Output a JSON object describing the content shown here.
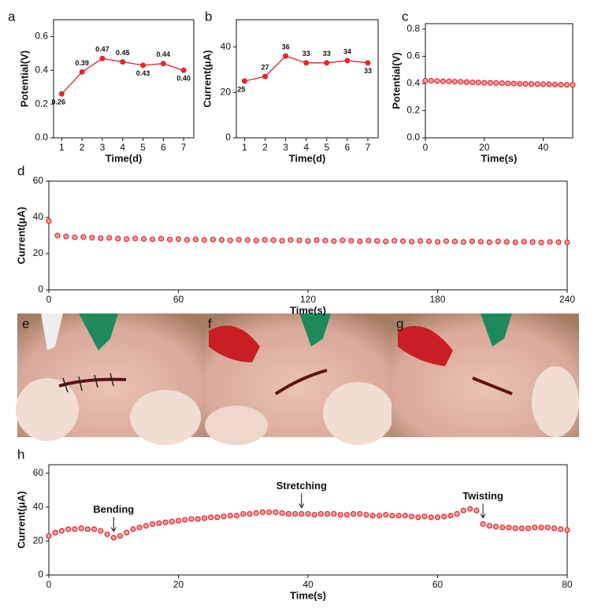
{
  "chart_data": [
    {
      "panel_label": "a",
      "type": "line",
      "x": [
        1,
        2,
        3,
        4,
        5,
        6,
        7
      ],
      "values": [
        0.26,
        0.39,
        0.47,
        0.45,
        0.43,
        0.44,
        0.4
      ],
      "value_labels": [
        "0.26",
        "0.39",
        "0.47",
        "0.45",
        "0.43",
        "0.44",
        "0.40"
      ],
      "xlim": [
        0.6,
        7.5
      ],
      "xticks": [
        1,
        2,
        3,
        4,
        5,
        6,
        7
      ],
      "ylim": [
        0,
        0.7
      ],
      "yticks": [
        {
          "value": 0,
          "label": "0.0"
        },
        {
          "value": 0.2,
          "label": "0.2"
        },
        {
          "value": 0.4,
          "label": "0.4"
        },
        {
          "value": 0.6,
          "label": "0.6"
        }
      ],
      "xlabel": "Time(d)",
      "ylabel": "Potential(V)",
      "color": "#e3262b",
      "marker": "filled"
    },
    {
      "panel_label": "b",
      "type": "line",
      "x": [
        1,
        2,
        3,
        4,
        5,
        6,
        7
      ],
      "values": [
        25,
        27,
        36,
        33,
        33,
        34,
        33
      ],
      "xlim": [
        0.6,
        7.5
      ],
      "xticks": [
        1,
        2,
        3,
        4,
        5,
        6,
        7
      ],
      "ylim": [
        0,
        52
      ],
      "yticks": [
        0,
        20,
        40
      ],
      "xlabel": "Time(d)",
      "ylabel": "Current(μA)",
      "color": "#e3262b",
      "marker": "filled"
    },
    {
      "panel_label": "c",
      "type": "scatter",
      "x": [
        0,
        2,
        4,
        6,
        8,
        10,
        12,
        14,
        16,
        18,
        20,
        22,
        24,
        26,
        28,
        30,
        32,
        34,
        36,
        38,
        40,
        42,
        44,
        46,
        48,
        50
      ],
      "values": [
        0.42,
        0.42,
        0.418,
        0.416,
        0.415,
        0.413,
        0.412,
        0.41,
        0.408,
        0.407,
        0.405,
        0.404,
        0.403,
        0.402,
        0.4,
        0.399,
        0.398,
        0.397,
        0.396,
        0.395,
        0.394,
        0.393,
        0.392,
        0.391,
        0.39,
        0.39
      ],
      "xlim": [
        0,
        50
      ],
      "xticks": [
        0,
        20,
        40
      ],
      "ylim": [
        0,
        0.84
      ],
      "yticks": [
        {
          "value": 0,
          "label": "0.0"
        },
        {
          "value": 0.2,
          "label": "0.2"
        },
        {
          "value": 0.4,
          "label": "0.4"
        },
        {
          "value": 0.6,
          "label": "0.6"
        },
        {
          "value": 0.8,
          "label": "0.8"
        }
      ],
      "xlabel": "Time(s)",
      "ylabel": "Potential(V)",
      "color": "#e3262b",
      "marker": "open"
    },
    {
      "panel_label": "d",
      "type": "scatter",
      "x": [
        0,
        4,
        8,
        12,
        16,
        20,
        24,
        28,
        32,
        36,
        40,
        44,
        48,
        52,
        56,
        60,
        64,
        68,
        72,
        76,
        80,
        84,
        88,
        92,
        96,
        100,
        104,
        108,
        112,
        116,
        120,
        124,
        128,
        132,
        136,
        140,
        144,
        148,
        152,
        156,
        160,
        164,
        168,
        172,
        176,
        180,
        184,
        188,
        192,
        196,
        200,
        204,
        208,
        212,
        216,
        220,
        224,
        228,
        232,
        236,
        240
      ],
      "values": [
        38,
        30,
        29.5,
        29,
        29.2,
        28.8,
        28.5,
        28.7,
        28.3,
        28,
        28.4,
        28.1,
        27.9,
        28.2,
        27.8,
        28,
        27.6,
        27.9,
        27.5,
        27.8,
        27.6,
        27.3,
        27.7,
        27.5,
        27.2,
        27.6,
        27.4,
        27.1,
        27.5,
        27.3,
        27,
        27.4,
        27.2,
        26.9,
        27.3,
        27.1,
        26.8,
        27.2,
        27,
        26.7,
        27.1,
        26.9,
        26.6,
        27,
        26.8,
        26.5,
        26.9,
        26.7,
        26.4,
        26.8,
        26.6,
        26.3,
        26.7,
        26.5,
        26.2,
        26.6,
        26.4,
        26.1,
        26.5,
        26.3,
        26.2
      ],
      "xlim": [
        0,
        240
      ],
      "xticks": [
        0,
        60,
        120,
        180,
        240
      ],
      "ylim": [
        0,
        60
      ],
      "yticks": [
        0,
        20,
        40,
        60
      ],
      "xlabel": "Time(s)",
      "ylabel": "Current(μA)",
      "color": "#e3262b",
      "marker": "open"
    },
    {
      "panel_label": "h",
      "type": "scatter",
      "x": [
        0,
        1,
        2,
        3,
        4,
        5,
        6,
        7,
        8,
        9,
        10,
        11,
        12,
        13,
        14,
        15,
        16,
        17,
        18,
        19,
        20,
        21,
        22,
        23,
        24,
        25,
        26,
        27,
        28,
        29,
        30,
        31,
        32,
        33,
        34,
        35,
        36,
        37,
        38,
        39,
        40,
        41,
        42,
        43,
        44,
        45,
        46,
        47,
        48,
        49,
        50,
        51,
        52,
        53,
        54,
        55,
        56,
        57,
        58,
        59,
        60,
        61,
        62,
        63,
        64,
        65,
        66,
        67,
        68,
        69,
        70,
        71,
        72,
        73,
        74,
        75,
        76,
        77,
        78,
        79,
        80
      ],
      "values": [
        23,
        25,
        26,
        27,
        27,
        27.5,
        27,
        27,
        26,
        24,
        22,
        23,
        25,
        27,
        28,
        29,
        30,
        30.5,
        31,
        31.5,
        32,
        32.5,
        33,
        33,
        33.5,
        34,
        34,
        34.5,
        35,
        35,
        36,
        36,
        36.5,
        37,
        37,
        37,
        36.5,
        36,
        36,
        36,
        36,
        35.5,
        36,
        36,
        36,
        35.5,
        35.5,
        36,
        36,
        35.5,
        35,
        35,
        35.5,
        35,
        35,
        35,
        34.5,
        34,
        34.5,
        34,
        34,
        34.5,
        35,
        36,
        38,
        39,
        38,
        30,
        29,
        28.5,
        28,
        28,
        27.5,
        27.5,
        27.5,
        28,
        28,
        28,
        27.5,
        27,
        26.5
      ],
      "xlim": [
        0,
        80
      ],
      "xticks": [
        0,
        20,
        40,
        60,
        80
      ],
      "ylim": [
        0,
        65
      ],
      "yticks": [
        0,
        20,
        40,
        60
      ],
      "xlabel": "Time(s)",
      "ylabel": "Current(μA)",
      "color": "#e3262b",
      "marker": "open",
      "annotations": [
        {
          "text": "Bending",
          "x": 10
        },
        {
          "text": "Stretching",
          "x": 39
        },
        {
          "text": "Twisting",
          "x": 67
        }
      ]
    }
  ],
  "photos": {
    "labels": [
      "e",
      "f",
      "g"
    ]
  }
}
